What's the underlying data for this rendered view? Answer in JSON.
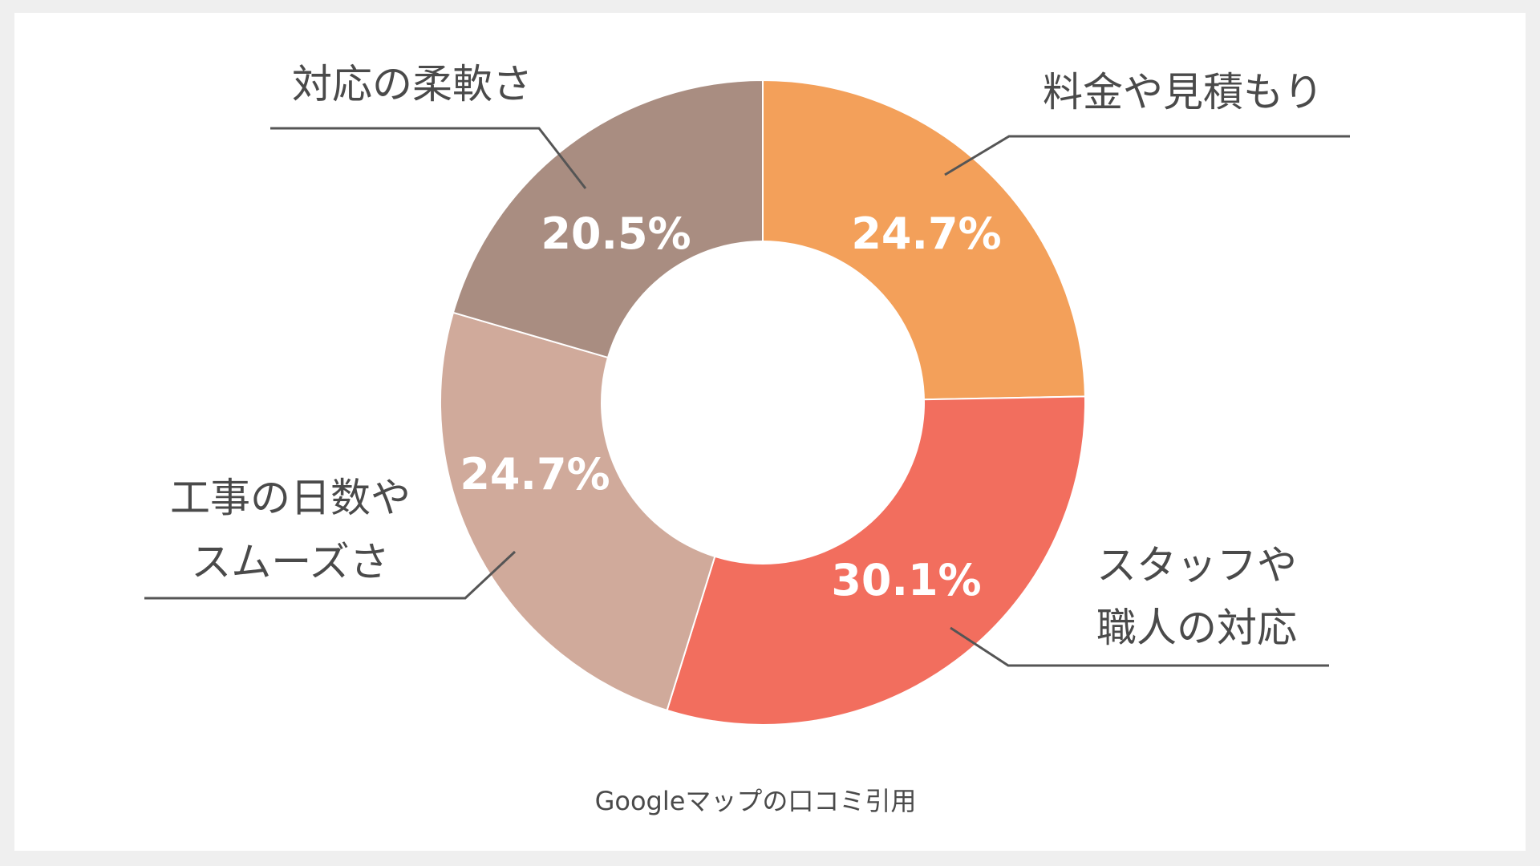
{
  "chart_data": {
    "type": "pie",
    "donut": true,
    "slices": [
      {
        "label_lines": [
          "料金や見積もり"
        ],
        "value": 24.7,
        "value_label": "24.7%",
        "color": "#f3a05a"
      },
      {
        "label_lines": [
          "スタッフや",
          "職人の対応"
        ],
        "value": 30.1,
        "value_label": "30.1%",
        "color": "#f26e5e"
      },
      {
        "label_lines": [
          "工事の日数や",
          "スムーズさ"
        ],
        "value": 24.7,
        "value_label": "24.7%",
        "color": "#d0aa9b"
      },
      {
        "label_lines": [
          "対応の柔軟さ"
        ],
        "value": 20.5,
        "value_label": "20.5%",
        "color": "#a98d81"
      }
    ],
    "legend": "none",
    "annotations": [
      "Googleマップの口コミ引用"
    ]
  }
}
